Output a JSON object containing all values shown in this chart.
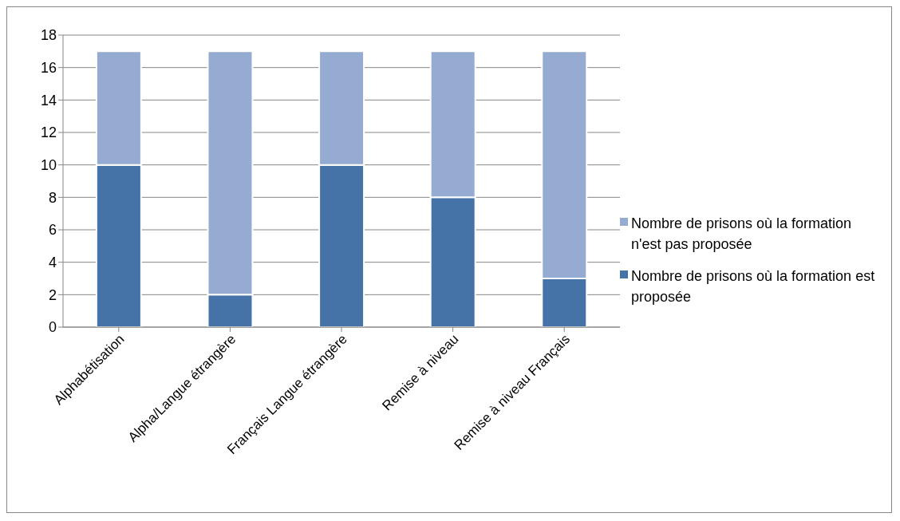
{
  "chart_data": {
    "type": "bar",
    "stacked": true,
    "categories": [
      "Alphabétisation",
      "Alpha/Langue étrangère",
      "Français Langue étrangère",
      "Remise à niveau",
      "Remise à niveau Français"
    ],
    "series": [
      {
        "name": "Nombre de prisons où la formation est proposée",
        "color": "#4573a7",
        "values": [
          10,
          2,
          10,
          8,
          3
        ]
      },
      {
        "name": "Nombre de prisons où la formation n'est pas proposée",
        "color": "#95abd2",
        "values": [
          7,
          15,
          7,
          9,
          14
        ]
      }
    ],
    "ylim": [
      0,
      18
    ],
    "yticks": [
      0,
      2,
      4,
      6,
      8,
      10,
      12,
      14,
      16,
      18
    ],
    "grid": "y",
    "legend": "right"
  }
}
